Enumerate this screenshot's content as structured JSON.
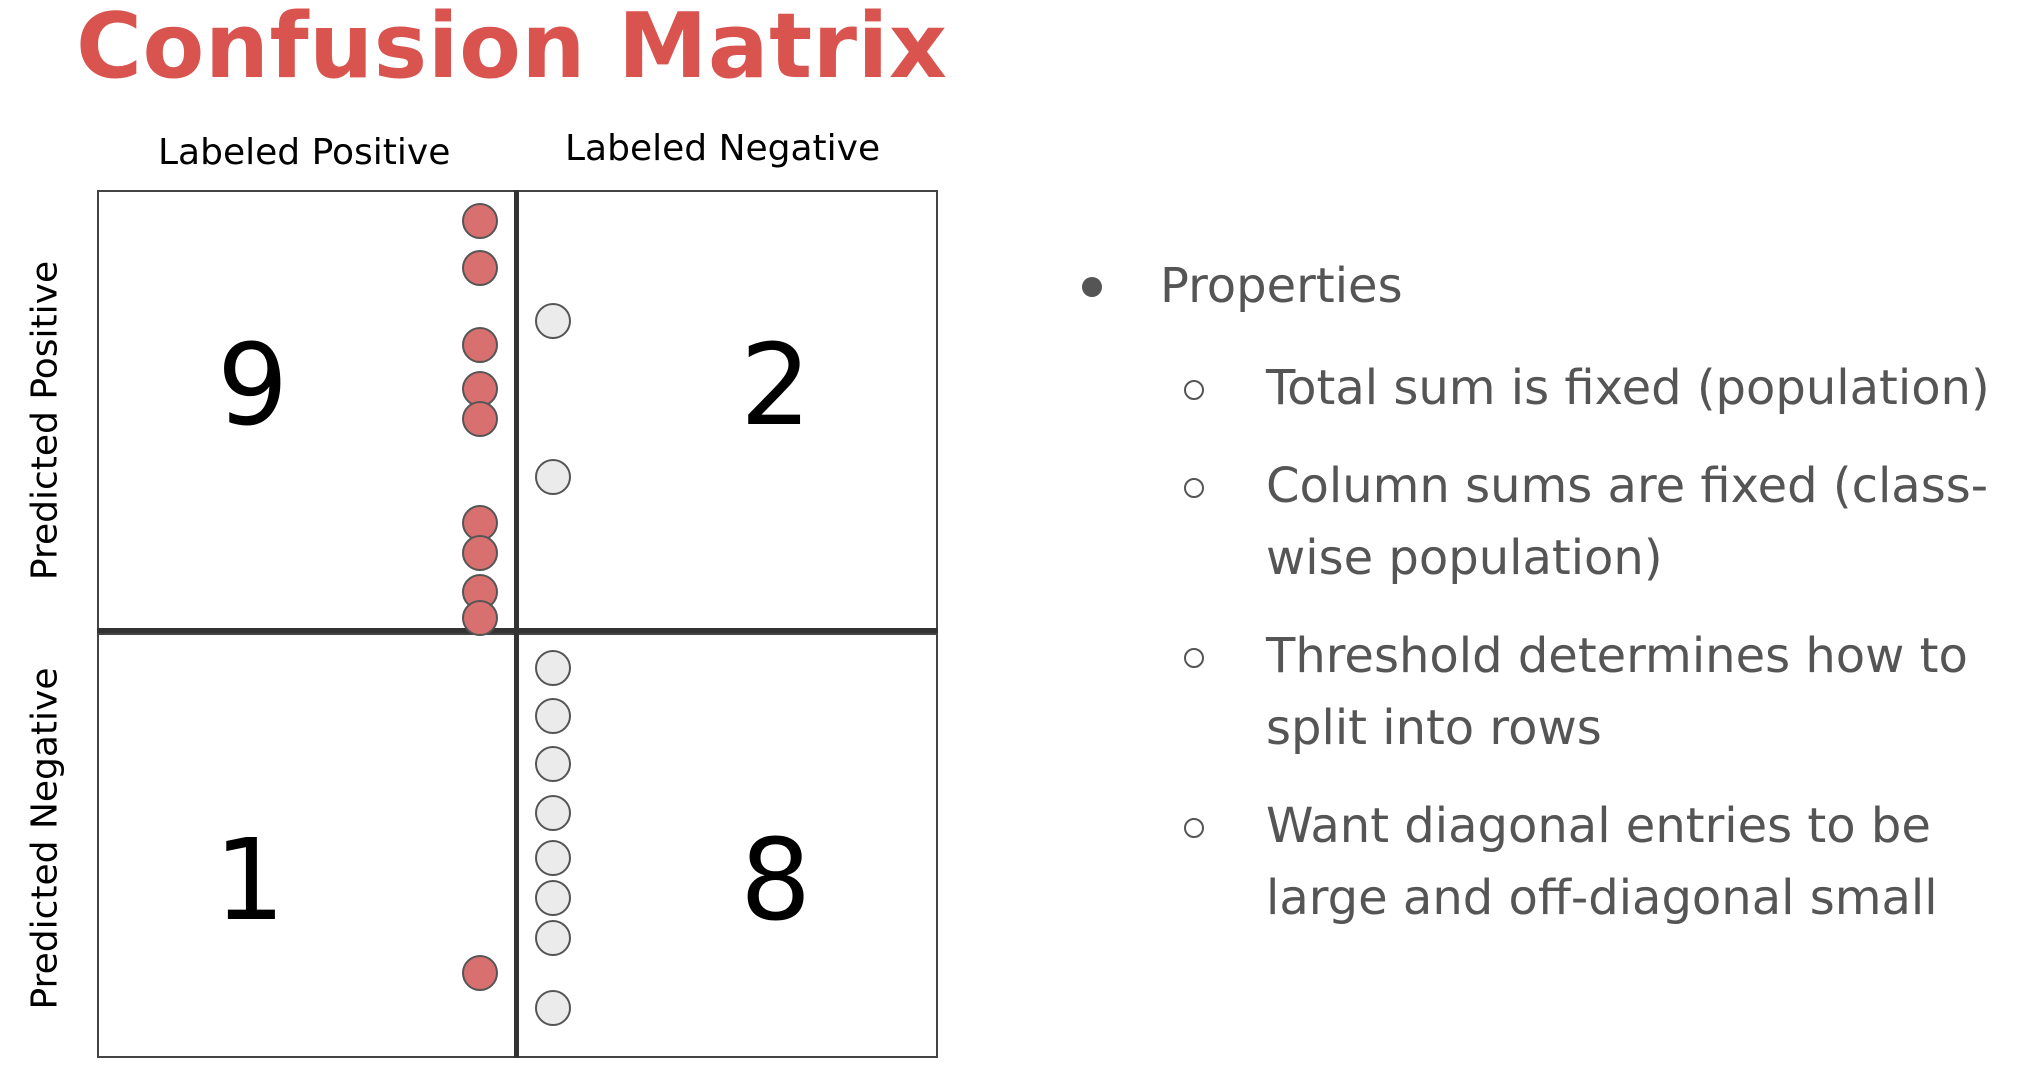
{
  "title": "Confusion Matrix",
  "columns": {
    "labeled_positive": "Labeled Positive",
    "labeled_negative": "Labeled Negative"
  },
  "rows": {
    "predicted_positive": "Predicted Positive",
    "predicted_negative": "Predicted Negative"
  },
  "matrix": {
    "true_positive": "9",
    "false_positive": "2",
    "false_negative": "1",
    "true_negative": "8"
  },
  "colors": {
    "title": "#d9534f",
    "positive_dot": "#d97070",
    "negative_dot": "#ebebeb"
  },
  "properties": {
    "heading": "Properties",
    "items": [
      "Total sum is fixed (population)",
      "Column sums are fixed (class-wise population)",
      "Threshold determines how to split into rows",
      "Want diagonal entries to be large and off-diagonal small"
    ]
  }
}
